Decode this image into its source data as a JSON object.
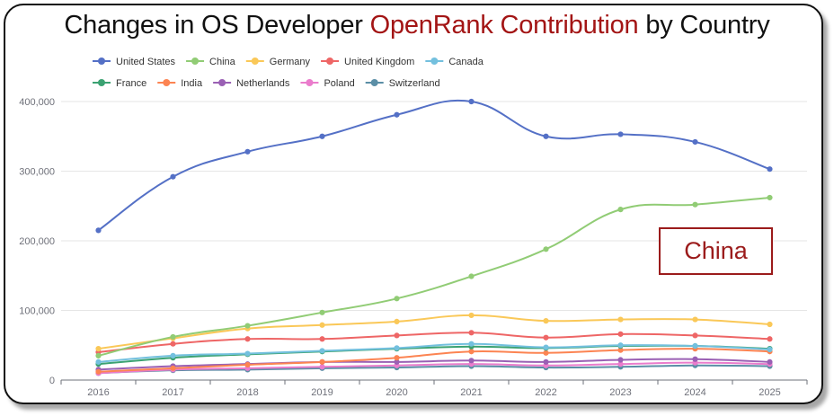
{
  "title": {
    "prefix": "Changes in OS Developer ",
    "highlight": "OpenRank Contribution",
    "suffix": " by Country",
    "highlight_color": "#A31515"
  },
  "annotation": {
    "label": "China",
    "color": "#9B1B1B"
  },
  "chart_data": {
    "type": "line",
    "title": "Changes in OS Developer OpenRank Contribution by Country",
    "xlabel": "",
    "ylabel": "",
    "categories": [
      "2016",
      "2017",
      "2018",
      "2019",
      "2020",
      "2021",
      "2022",
      "2023",
      "2024",
      "2025"
    ],
    "ylim": [
      0,
      400000
    ],
    "yticks": [
      0,
      100000,
      200000,
      300000,
      400000
    ],
    "ytick_labels": [
      "0",
      "100,000",
      "200,000",
      "300,000",
      "400,000"
    ],
    "grid": true,
    "legend_position": "top-left",
    "smooth": true,
    "series": [
      {
        "name": "United States",
        "color": "#5470c6",
        "values": [
          215000,
          292000,
          328000,
          350000,
          381000,
          400000,
          350000,
          353000,
          342000,
          303000
        ]
      },
      {
        "name": "China",
        "color": "#91cc75",
        "values": [
          35000,
          62000,
          78000,
          97000,
          117000,
          149000,
          188000,
          245000,
          252000,
          262000
        ]
      },
      {
        "name": "Germany",
        "color": "#fac858",
        "values": [
          45000,
          60000,
          74000,
          79000,
          84000,
          93000,
          85000,
          87000,
          87000,
          80000
        ]
      },
      {
        "name": "United Kingdom",
        "color": "#ee6666",
        "values": [
          40000,
          52000,
          59000,
          59000,
          64000,
          68000,
          61000,
          66000,
          64000,
          59000
        ]
      },
      {
        "name": "Canada",
        "color": "#73c0de",
        "values": [
          26000,
          35000,
          38000,
          42000,
          46000,
          52000,
          47000,
          50000,
          49000,
          44000
        ]
      },
      {
        "name": "France",
        "color": "#3ba272",
        "values": [
          23000,
          32000,
          37000,
          41000,
          45000,
          48000,
          46000,
          49000,
          49000,
          45000
        ]
      },
      {
        "name": "India",
        "color": "#fc8452",
        "values": [
          12000,
          17000,
          22000,
          26000,
          32000,
          41000,
          39000,
          43000,
          45000,
          41000
        ]
      },
      {
        "name": "Netherlands",
        "color": "#9a60b4",
        "values": [
          15000,
          20000,
          23000,
          26000,
          26000,
          28000,
          26000,
          29000,
          30000,
          26000
        ]
      },
      {
        "name": "Poland",
        "color": "#ea7ccc",
        "values": [
          10000,
          15000,
          17000,
          19000,
          21000,
          23000,
          21000,
          23000,
          25000,
          23000
        ]
      },
      {
        "name": "Switzerland",
        "color": "#5b8ea6",
        "values": [
          10000,
          14000,
          15000,
          17000,
          18000,
          20000,
          18000,
          19000,
          21000,
          20000
        ]
      }
    ]
  }
}
